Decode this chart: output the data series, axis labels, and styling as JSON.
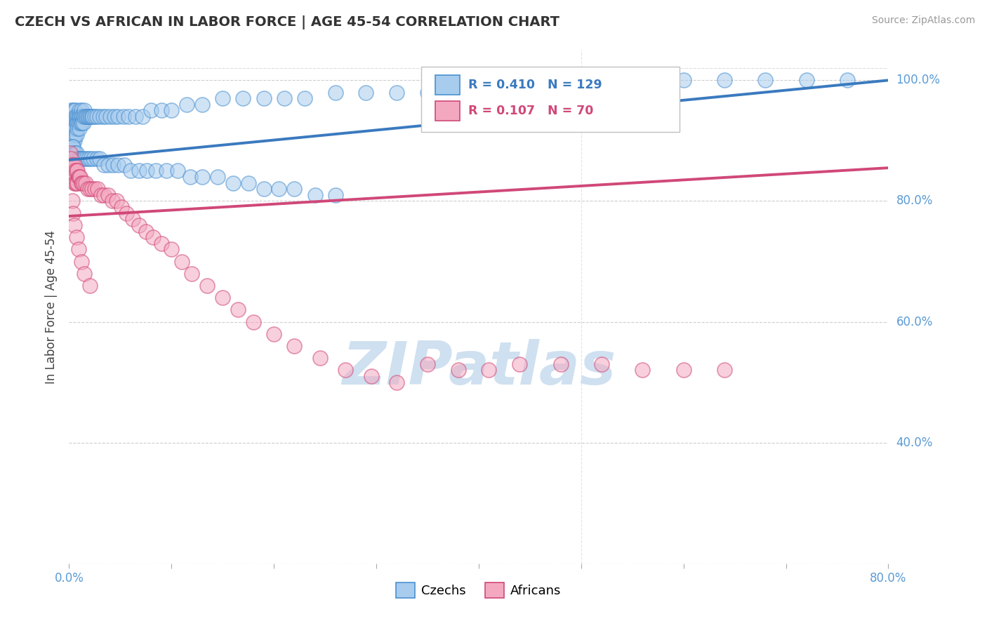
{
  "title": "CZECH VS AFRICAN IN LABOR FORCE | AGE 45-54 CORRELATION CHART",
  "source": "Source: ZipAtlas.com",
  "ylabel": "In Labor Force | Age 45-54",
  "xlim": [
    0.0,
    0.8
  ],
  "ylim": [
    0.2,
    1.05
  ],
  "ytick_positions": [
    0.2,
    0.4,
    0.6,
    0.8,
    1.0
  ],
  "ytick_labels": [
    "",
    "40.0%",
    "60.0%",
    "80.0%",
    "100.0%"
  ],
  "xtick_positions": [
    0.0,
    0.1,
    0.2,
    0.3,
    0.4,
    0.5,
    0.6,
    0.7,
    0.8
  ],
  "background_color": "#ffffff",
  "grid_color": "#c8c8c8",
  "czechs_fill": "#a8ccee",
  "africans_fill": "#f4a8c0",
  "czechs_edge": "#4a90d0",
  "africans_edge": "#d04878",
  "czechs_line": "#3a7abf",
  "africans_line": "#d04878",
  "axis_label_color": "#5b9bd5",
  "title_color": "#333333",
  "source_color": "#999999",
  "watermark_color": "#cfe0f0",
  "R_czechs": 0.41,
  "N_czechs": 129,
  "R_africans": 0.107,
  "N_africans": 70,
  "label_czechs": "Czechs",
  "label_africans": "Africans",
  "czechs_trend_x0": 0.0,
  "czechs_trend_y0": 0.868,
  "czechs_trend_x1": 0.8,
  "czechs_trend_y1": 1.0,
  "africans_trend_x0": 0.0,
  "africans_trend_y0": 0.775,
  "africans_trend_x1": 0.8,
  "africans_trend_y1": 0.855,
  "czechs_x": [
    0.002,
    0.002,
    0.002,
    0.002,
    0.003,
    0.003,
    0.003,
    0.003,
    0.004,
    0.004,
    0.004,
    0.004,
    0.005,
    0.005,
    0.005,
    0.005,
    0.006,
    0.006,
    0.006,
    0.006,
    0.007,
    0.007,
    0.007,
    0.008,
    0.008,
    0.008,
    0.009,
    0.009,
    0.01,
    0.01,
    0.01,
    0.011,
    0.011,
    0.012,
    0.012,
    0.012,
    0.013,
    0.013,
    0.014,
    0.014,
    0.015,
    0.015,
    0.016,
    0.017,
    0.018,
    0.019,
    0.02,
    0.021,
    0.022,
    0.023,
    0.025,
    0.027,
    0.03,
    0.033,
    0.036,
    0.04,
    0.044,
    0.048,
    0.053,
    0.058,
    0.065,
    0.072,
    0.08,
    0.09,
    0.1,
    0.115,
    0.13,
    0.15,
    0.17,
    0.19,
    0.21,
    0.23,
    0.26,
    0.29,
    0.32,
    0.35,
    0.39,
    0.43,
    0.47,
    0.51,
    0.55,
    0.6,
    0.64,
    0.68,
    0.72,
    0.76,
    0.003,
    0.004,
    0.005,
    0.006,
    0.007,
    0.008,
    0.009,
    0.01,
    0.011,
    0.012,
    0.013,
    0.015,
    0.017,
    0.019,
    0.021,
    0.024,
    0.027,
    0.03,
    0.034,
    0.038,
    0.043,
    0.048,
    0.054,
    0.06,
    0.068,
    0.076,
    0.085,
    0.095,
    0.106,
    0.118,
    0.13,
    0.145,
    0.16,
    0.175,
    0.19,
    0.205,
    0.22,
    0.24,
    0.26
  ],
  "czechs_y": [
    0.95,
    0.93,
    0.92,
    0.9,
    0.94,
    0.92,
    0.91,
    0.89,
    0.95,
    0.93,
    0.91,
    0.9,
    0.95,
    0.93,
    0.92,
    0.9,
    0.95,
    0.94,
    0.92,
    0.91,
    0.94,
    0.93,
    0.91,
    0.94,
    0.93,
    0.92,
    0.94,
    0.93,
    0.95,
    0.94,
    0.92,
    0.94,
    0.93,
    0.95,
    0.94,
    0.93,
    0.94,
    0.93,
    0.94,
    0.93,
    0.95,
    0.94,
    0.94,
    0.94,
    0.94,
    0.94,
    0.94,
    0.94,
    0.94,
    0.94,
    0.94,
    0.94,
    0.94,
    0.94,
    0.94,
    0.94,
    0.94,
    0.94,
    0.94,
    0.94,
    0.94,
    0.94,
    0.95,
    0.95,
    0.95,
    0.96,
    0.96,
    0.97,
    0.97,
    0.97,
    0.97,
    0.97,
    0.98,
    0.98,
    0.98,
    0.98,
    0.99,
    0.99,
    0.99,
    1.0,
    1.0,
    1.0,
    1.0,
    1.0,
    1.0,
    1.0,
    0.89,
    0.89,
    0.88,
    0.88,
    0.88,
    0.87,
    0.87,
    0.87,
    0.87,
    0.87,
    0.87,
    0.87,
    0.87,
    0.87,
    0.87,
    0.87,
    0.87,
    0.87,
    0.86,
    0.86,
    0.86,
    0.86,
    0.86,
    0.85,
    0.85,
    0.85,
    0.85,
    0.85,
    0.85,
    0.84,
    0.84,
    0.84,
    0.83,
    0.83,
    0.82,
    0.82,
    0.82,
    0.81,
    0.81
  ],
  "africans_x": [
    0.001,
    0.001,
    0.002,
    0.002,
    0.003,
    0.003,
    0.004,
    0.004,
    0.005,
    0.005,
    0.006,
    0.006,
    0.007,
    0.007,
    0.008,
    0.008,
    0.009,
    0.01,
    0.011,
    0.012,
    0.013,
    0.014,
    0.016,
    0.018,
    0.02,
    0.022,
    0.025,
    0.028,
    0.031,
    0.034,
    0.038,
    0.042,
    0.046,
    0.051,
    0.056,
    0.062,
    0.068,
    0.075,
    0.082,
    0.09,
    0.1,
    0.11,
    0.12,
    0.135,
    0.15,
    0.165,
    0.18,
    0.2,
    0.22,
    0.245,
    0.27,
    0.295,
    0.32,
    0.35,
    0.38,
    0.41,
    0.44,
    0.48,
    0.52,
    0.56,
    0.6,
    0.64,
    0.003,
    0.004,
    0.005,
    0.007,
    0.009,
    0.012,
    0.015,
    0.02
  ],
  "africans_y": [
    0.88,
    0.86,
    0.87,
    0.85,
    0.86,
    0.84,
    0.86,
    0.84,
    0.86,
    0.83,
    0.85,
    0.83,
    0.85,
    0.83,
    0.85,
    0.83,
    0.84,
    0.84,
    0.84,
    0.83,
    0.83,
    0.83,
    0.83,
    0.82,
    0.82,
    0.82,
    0.82,
    0.82,
    0.81,
    0.81,
    0.81,
    0.8,
    0.8,
    0.79,
    0.78,
    0.77,
    0.76,
    0.75,
    0.74,
    0.73,
    0.72,
    0.7,
    0.68,
    0.66,
    0.64,
    0.62,
    0.6,
    0.58,
    0.56,
    0.54,
    0.52,
    0.51,
    0.5,
    0.53,
    0.52,
    0.52,
    0.53,
    0.53,
    0.53,
    0.52,
    0.52,
    0.52,
    0.8,
    0.78,
    0.76,
    0.74,
    0.72,
    0.7,
    0.68,
    0.66
  ]
}
